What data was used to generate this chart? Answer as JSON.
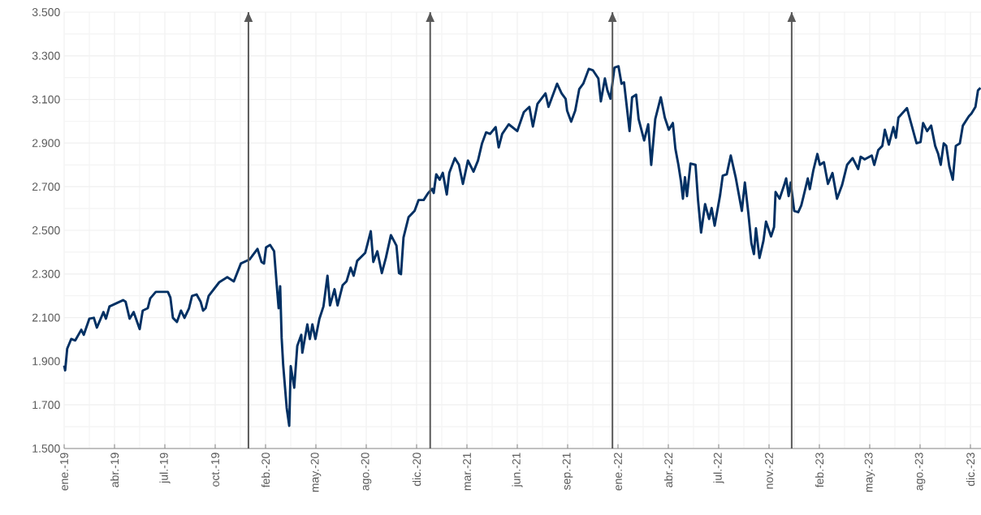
{
  "chart_data": {
    "type": "line",
    "x": [
      "2019-01-01",
      "2019-01-03",
      "2019-01-07",
      "2019-01-15",
      "2019-01-23",
      "2019-02-04",
      "2019-02-09",
      "2019-02-20",
      "2019-03-01",
      "2019-03-07",
      "2019-03-20",
      "2019-03-25",
      "2019-04-01",
      "2019-04-28",
      "2019-05-03",
      "2019-05-11",
      "2019-05-19",
      "2019-05-31",
      "2019-06-06",
      "2019-06-16",
      "2019-06-21",
      "2019-07-02",
      "2019-07-18",
      "2019-07-26",
      "2019-07-31",
      "2019-08-05",
      "2019-08-13",
      "2019-08-21",
      "2019-08-28",
      "2019-09-06",
      "2019-09-12",
      "2019-09-21",
      "2019-09-29",
      "2019-10-04",
      "2019-10-09",
      "2019-10-15",
      "2019-11-05",
      "2019-11-21",
      "2019-12-04",
      "2019-12-18",
      "2020-01-04",
      "2020-01-20",
      "2020-01-28",
      "2020-02-02",
      "2020-02-06",
      "2020-02-14",
      "2020-02-22",
      "2020-02-27",
      "2020-03-02",
      "2020-03-05",
      "2020-03-08",
      "2020-03-11",
      "2020-03-18",
      "2020-03-23",
      "2020-03-26",
      "2020-04-02",
      "2020-04-08",
      "2020-04-16",
      "2020-04-18",
      "2020-04-28",
      "2020-05-03",
      "2020-05-08",
      "2020-05-14",
      "2020-05-22",
      "2020-05-30",
      "2020-06-07",
      "2020-06-12",
      "2020-06-21",
      "2020-06-27",
      "2020-07-07",
      "2020-07-15",
      "2020-07-23",
      "2020-07-29",
      "2020-08-05",
      "2020-08-21",
      "2020-09-01",
      "2020-09-06",
      "2020-09-14",
      "2020-09-23",
      "2020-10-01",
      "2020-10-11",
      "2020-10-22",
      "2020-10-27",
      "2020-10-31",
      "2020-11-05",
      "2020-11-15",
      "2020-11-27",
      "2020-12-05",
      "2020-12-15",
      "2020-12-24",
      "2021-01-01",
      "2021-01-04",
      "2021-01-09",
      "2021-01-16",
      "2021-01-22",
      "2021-01-30",
      "2021-02-04",
      "2021-02-15",
      "2021-02-23",
      "2021-03-03",
      "2021-03-13",
      "2021-03-24",
      "2021-04-02",
      "2021-04-10",
      "2021-04-18",
      "2021-04-26",
      "2021-05-07",
      "2021-05-13",
      "2021-05-20",
      "2021-06-02",
      "2021-06-19",
      "2021-07-02",
      "2021-07-13",
      "2021-07-20",
      "2021-07-29",
      "2021-08-14",
      "2021-08-20",
      "2021-09-06",
      "2021-09-15",
      "2021-09-23",
      "2021-09-26",
      "2021-10-04",
      "2021-10-12",
      "2021-10-20",
      "2021-10-28",
      "2021-11-08",
      "2021-11-16",
      "2021-11-27",
      "2021-12-02",
      "2021-12-10",
      "2021-12-15",
      "2021-12-21",
      "2021-12-29",
      "2022-01-06",
      "2022-01-12",
      "2022-01-17",
      "2022-01-28",
      "2022-02-02",
      "2022-02-10",
      "2022-02-15",
      "2022-02-26",
      "2022-03-06",
      "2022-03-12",
      "2022-03-20",
      "2022-03-31",
      "2022-04-08",
      "2022-04-16",
      "2022-04-24",
      "2022-04-29",
      "2022-05-05",
      "2022-05-10",
      "2022-05-14",
      "2022-05-18",
      "2022-05-22",
      "2022-05-29",
      "2022-06-08",
      "2022-06-13",
      "2022-06-19",
      "2022-06-27",
      "2022-07-05",
      "2022-07-10",
      "2022-07-16",
      "2022-07-27",
      "2022-08-01",
      "2022-08-09",
      "2022-08-17",
      "2022-08-27",
      "2022-09-08",
      "2022-09-14",
      "2022-09-21",
      "2022-09-27",
      "2022-10-02",
      "2022-10-06",
      "2022-10-13",
      "2022-10-21",
      "2022-10-26",
      "2022-11-05",
      "2022-11-11",
      "2022-11-14",
      "2022-11-22",
      "2022-12-01",
      "2022-12-05",
      "2022-12-10",
      "2022-12-14",
      "2022-12-21",
      "2022-12-29",
      "2023-01-04",
      "2023-01-08",
      "2023-01-17",
      "2023-01-21",
      "2023-01-28",
      "2023-02-05",
      "2023-02-10",
      "2023-02-18",
      "2023-02-26",
      "2023-03-07",
      "2023-03-16",
      "2023-03-26",
      "2023-04-05",
      "2023-04-16",
      "2023-04-27",
      "2023-05-02",
      "2023-05-10",
      "2023-05-24",
      "2023-05-29",
      "2023-06-06",
      "2023-06-14",
      "2023-06-19",
      "2023-06-27",
      "2023-07-06",
      "2023-07-11",
      "2023-07-16",
      "2023-08-02",
      "2023-08-10",
      "2023-08-21",
      "2023-08-29",
      "2023-09-03",
      "2023-09-11",
      "2023-09-19",
      "2023-09-27",
      "2023-10-03",
      "2023-10-08",
      "2023-10-14",
      "2023-10-19",
      "2023-10-25",
      "2023-11-01",
      "2023-11-07",
      "2023-11-15",
      "2023-11-21",
      "2023-12-03",
      "2023-12-08",
      "2023-12-16",
      "2023-12-21",
      "2023-12-26"
    ],
    "series": [
      {
        "color": "#003063",
        "values": [
          1880,
          1858,
          1957,
          2002,
          1995,
          2044,
          2021,
          2095,
          2099,
          2054,
          2125,
          2095,
          2151,
          2180,
          2173,
          2095,
          2125,
          2047,
          2132,
          2143,
          2188,
          2218,
          2218,
          2218,
          2192,
          2099,
          2080,
          2132,
          2099,
          2143,
          2199,
          2206,
          2173,
          2132,
          2143,
          2199,
          2262,
          2285,
          2266,
          2348,
          2366,
          2415,
          2355,
          2348,
          2422,
          2433,
          2404,
          2255,
          2143,
          2244,
          2006,
          1883,
          1686,
          1604,
          1877,
          1779,
          1970,
          2021,
          1939,
          2069,
          2002,
          2069,
          2002,
          2095,
          2151,
          2292,
          2156,
          2230,
          2156,
          2248,
          2267,
          2329,
          2292,
          2360,
          2397,
          2496,
          2355,
          2404,
          2304,
          2374,
          2478,
          2430,
          2304,
          2299,
          2467,
          2560,
          2589,
          2639,
          2639,
          2671,
          2690,
          2671,
          2757,
          2732,
          2764,
          2664,
          2764,
          2831,
          2801,
          2713,
          2820,
          2769,
          2820,
          2899,
          2949,
          2942,
          2973,
          2880,
          2942,
          2986,
          2955,
          3042,
          3066,
          2976,
          3079,
          3128,
          3066,
          3172,
          3128,
          3103,
          3048,
          2998,
          3048,
          3147,
          3172,
          3240,
          3234,
          3196,
          3091,
          3196,
          3141,
          3103,
          3246,
          3252,
          3172,
          3178,
          2955,
          3110,
          3122,
          3010,
          2912,
          2986,
          2800,
          3010,
          3110,
          3017,
          2961,
          2992,
          2874,
          2800,
          2726,
          2645,
          2744,
          2657,
          2806,
          2800,
          2639,
          2490,
          2620,
          2552,
          2602,
          2521,
          2664,
          2750,
          2757,
          2843,
          2740,
          2589,
          2719,
          2577,
          2441,
          2391,
          2509,
          2373,
          2453,
          2540,
          2472,
          2515,
          2676,
          2645,
          2707,
          2738,
          2657,
          2719,
          2589,
          2583,
          2614,
          2651,
          2738,
          2689,
          2775,
          2850,
          2800,
          2812,
          2713,
          2763,
          2645,
          2707,
          2800,
          2831,
          2781,
          2837,
          2825,
          2843,
          2800,
          2868,
          2887,
          2961,
          2893,
          2973,
          2924,
          3017,
          3060,
          2992,
          2899,
          2905,
          2992,
          2955,
          2980,
          2887,
          2850,
          2800,
          2899,
          2887,
          2794,
          2732,
          2887,
          2899,
          2980,
          3023,
          3035,
          3066,
          3141,
          3153
        ]
      }
    ],
    "xlim": [
      "2019-01-01",
      "2023-12-27"
    ],
    "xticks": [
      {
        "value": "2019-01-01",
        "label": "ene.-19"
      },
      {
        "value": "2019-04-11",
        "label": "abr.-19"
      },
      {
        "value": "2019-07-20",
        "label": "jul.-19"
      },
      {
        "value": "2019-10-28",
        "label": "oct.-19"
      },
      {
        "value": "2020-02-05",
        "label": "feb.-20"
      },
      {
        "value": "2020-05-15",
        "label": "may.-20"
      },
      {
        "value": "2020-08-23",
        "label": "ago.-20"
      },
      {
        "value": "2020-12-01",
        "label": "dic.-20"
      },
      {
        "value": "2021-03-11",
        "label": "mar.-21"
      },
      {
        "value": "2021-06-19",
        "label": "jun.-21"
      },
      {
        "value": "2021-09-27",
        "label": "sep.-21"
      },
      {
        "value": "2022-01-05",
        "label": "ene.-22"
      },
      {
        "value": "2022-04-15",
        "label": "abr.-22"
      },
      {
        "value": "2022-07-24",
        "label": "jul.-22"
      },
      {
        "value": "2022-11-01",
        "label": "nov.-22"
      },
      {
        "value": "2023-02-09",
        "label": "feb.-23"
      },
      {
        "value": "2023-05-20",
        "label": "may.-23"
      },
      {
        "value": "2023-08-28",
        "label": "ago.-23"
      },
      {
        "value": "2023-12-06",
        "label": "dic.-23"
      }
    ],
    "ylim": [
      1500,
      3500
    ],
    "yticks": [
      {
        "value": 1500,
        "label": "1.500"
      },
      {
        "value": 1700,
        "label": "1.700"
      },
      {
        "value": 1900,
        "label": "1.900"
      },
      {
        "value": 2100,
        "label": "2.100"
      },
      {
        "value": 2300,
        "label": "2.300"
      },
      {
        "value": 2500,
        "label": "2.500"
      },
      {
        "value": 2700,
        "label": "2.700"
      },
      {
        "value": 2900,
        "label": "2.900"
      },
      {
        "value": 3100,
        "label": "3.100"
      },
      {
        "value": 3300,
        "label": "3.300"
      },
      {
        "value": 3500,
        "label": "3.500"
      }
    ],
    "ref_lines": [
      {
        "axis": "x",
        "value": "2020-01-02",
        "color": "#595959"
      },
      {
        "axis": "x",
        "value": "2020-12-28",
        "color": "#595959"
      },
      {
        "axis": "x",
        "value": "2021-12-25",
        "color": "#595959"
      },
      {
        "axis": "x",
        "value": "2022-12-16",
        "color": "#595959"
      }
    ],
    "grid": true,
    "legend": false,
    "marker": "none",
    "line_style": "solid"
  }
}
